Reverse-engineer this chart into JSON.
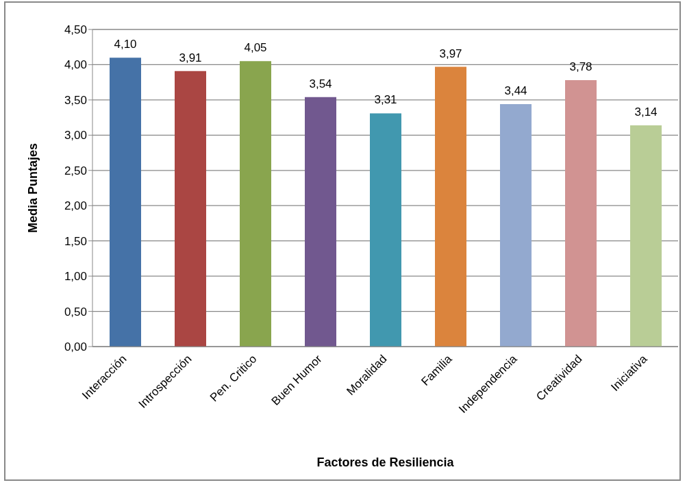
{
  "chart_data": {
    "type": "bar",
    "xlabel": "Factores de Resiliencia",
    "ylabel": "Media Puntajes",
    "categories": [
      "Interacción",
      "Introspección",
      "Pen. Critico",
      "Buen Humor",
      "Moralidad",
      "Familia",
      "Independencia",
      "Creatividad",
      "Iniciativa"
    ],
    "values": [
      4.1,
      3.91,
      4.05,
      3.54,
      3.31,
      3.97,
      3.44,
      3.78,
      3.14
    ],
    "value_labels": [
      "4,10",
      "3,91",
      "4,05",
      "3,54",
      "3,31",
      "3,97",
      "3,44",
      "3,78",
      "3,14"
    ],
    "colors": [
      "#4572a7",
      "#aa4643",
      "#89a54e",
      "#71588f",
      "#4198af",
      "#db843d",
      "#93a9cf",
      "#d19392",
      "#b9cd96"
    ],
    "ylim": [
      0,
      4.5
    ],
    "yticks": [
      {
        "value": 0,
        "label": "0,00"
      },
      {
        "value": 0.5,
        "label": "0,50"
      },
      {
        "value": 1,
        "label": "1,00"
      },
      {
        "value": 1.5,
        "label": "1,50"
      },
      {
        "value": 2,
        "label": "2,00"
      },
      {
        "value": 2.5,
        "label": "2,50"
      },
      {
        "value": 3,
        "label": "3,00"
      },
      {
        "value": 3.5,
        "label": "3,50"
      },
      {
        "value": 4,
        "label": "4,00"
      },
      {
        "value": 4.5,
        "label": "4,50"
      }
    ],
    "grid": "y",
    "legend": false
  }
}
